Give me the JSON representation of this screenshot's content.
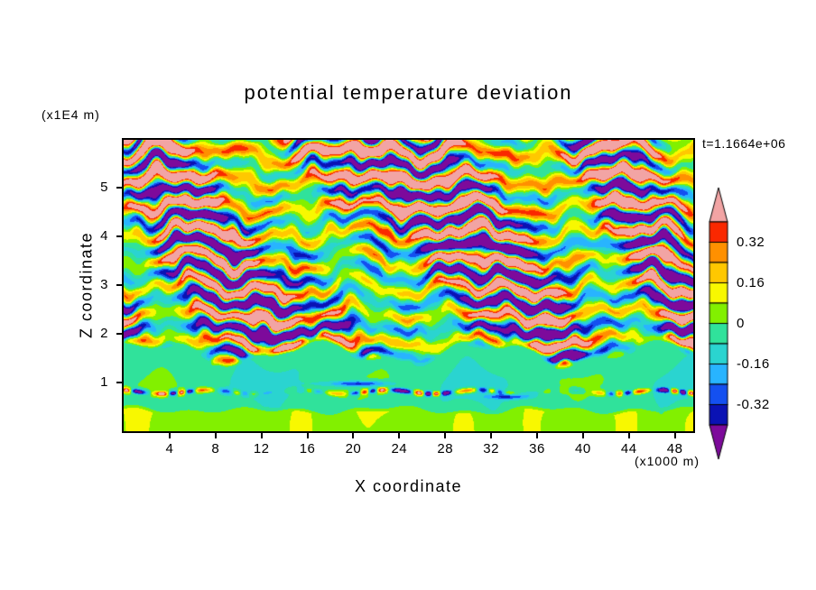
{
  "title": "potential temperature deviation",
  "timestamp": "t=1.1664e+06",
  "axes": {
    "x": {
      "label": "X coordinate",
      "unit": "(x1000 m)",
      "ticks": [
        4,
        8,
        12,
        16,
        20,
        24,
        28,
        32,
        36,
        40,
        44,
        48
      ]
    },
    "z": {
      "label": "Z coordinate",
      "unit": "(x1E4 m)",
      "ticks": [
        1,
        2,
        3,
        4,
        5
      ]
    }
  },
  "colorbar": {
    "labels": [
      "0.32",
      "0.16",
      "0",
      "-0.16",
      "-0.32"
    ],
    "label_boundaries": [
      1,
      3,
      5,
      7,
      9
    ],
    "levels": [
      -0.4,
      -0.32,
      -0.24,
      -0.16,
      -0.08,
      0,
      0.08,
      0.16,
      0.24,
      0.32,
      0.4
    ],
    "colors": [
      "#7d0a9b",
      "#0a12b4",
      "#1450f0",
      "#28b4ff",
      "#2ad4d0",
      "#30e29b",
      "#82f000",
      "#f8f800",
      "#ffc800",
      "#ff9000",
      "#fa2800",
      "#f2a4a4"
    ]
  },
  "chart_data": {
    "type": "heatmap",
    "title": "potential temperature deviation",
    "xlabel": "X coordinate (x1000 m)",
    "ylabel": "Z coordinate (x1E4 m)",
    "time_label": "t=1.1664e+06",
    "x_range": [
      0,
      49.6
    ],
    "z_range": [
      0,
      5.98
    ],
    "contour_levels": [
      -0.4,
      -0.32,
      -0.24,
      -0.16,
      -0.08,
      0,
      0.08,
      0.16,
      0.24,
      0.32,
      0.4
    ],
    "palette": [
      "#7d0a9b",
      "#0a12b4",
      "#1450f0",
      "#28b4ff",
      "#2ad4d0",
      "#30e29b",
      "#82f000",
      "#f8f800",
      "#ffc800",
      "#ff9000",
      "#fa2800",
      "#f2a4a4"
    ],
    "field_description": "Filled-contour vertical cross-section. Above z~1.6 (x1E4 m): strongly stratified turbulent layers alternating between large positive deviation (>0.4, salmon pink) and large negative deviation (<-0.4, purple), broken by thin filaments of red/orange/yellow/green/cyan/blue at layer interfaces. Below z~1.6: quiescent near-zero field (-0.08..0, spring green) with a thin perturbed line near z~0.8 showing strong +/- specks, elongated dark-blue streaks near x~20 and x~33, and a slightly positive (0..0.08, yellow-green) band below z~0.5 with yellow wisps.",
    "render_params": {
      "band_period": 0.56,
      "band_amp": 0.64,
      "band_bottom_edge": 1.52,
      "upper_bias": 0.12,
      "lower_mean": -0.048,
      "bottom_band_top": 0.47,
      "bottom_band_value": 0.105,
      "turb_line_z": 0.8,
      "turb_line_amp": 0.55
    }
  }
}
